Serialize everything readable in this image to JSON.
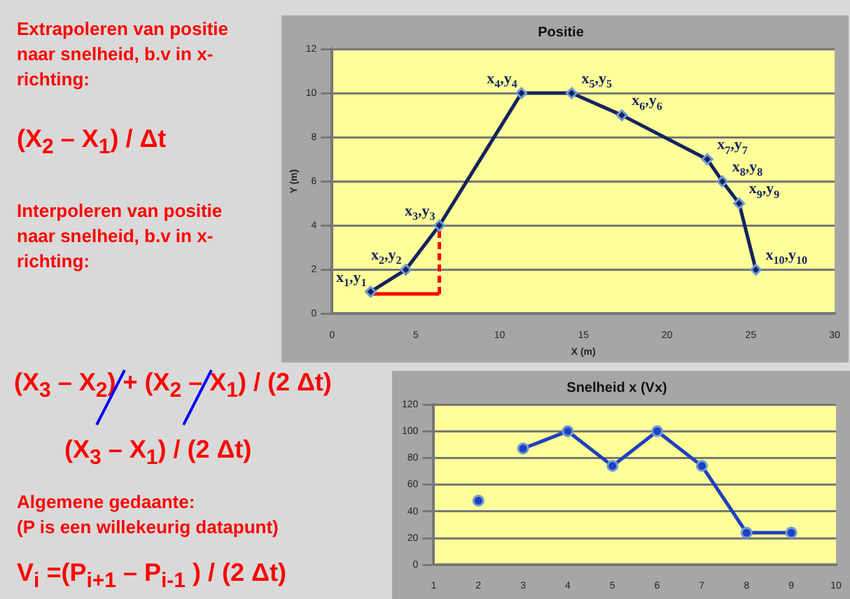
{
  "chart_data": [
    {
      "type": "other",
      "annotations": [
        "Extrapoleren van positie naar snelheid, b.v in x-richting:",
        "(X$_{2}$ – X$_{1}$) / Δt",
        "Interpoleren van positie naar snelheid, b.v in x-richting:",
        "(X$_{3}$ – X$_{2}$) + (X$_{2}$ – X$_{1}$) / (2 Δt)",
        "(X$_{3}$ – X$_{1}$) / (2 Δt)",
        "Algemene gedaante:",
        "(P is een willekeurig datapunt)",
        "V$_{i}$ =(P$_{i+1}$ – P$_{i-1}$ ) / (2 Δt)"
      ]
    },
    {
      "type": "line",
      "title": "Positie",
      "xlabel": "X (m)",
      "ylabel": "Y (m)",
      "xlim": [
        0,
        30
      ],
      "xticks": [
        0,
        5,
        10,
        15,
        20,
        25,
        30
      ],
      "ylim": [
        0,
        12
      ],
      "yticks": [
        0,
        2,
        4,
        6,
        8,
        10,
        12
      ],
      "grid": "y",
      "legend": false,
      "marker": "diamond",
      "series": [
        {
          "color": "#14235f",
          "x": [
            2.3,
            4.4,
            6.4,
            11.3,
            14.3,
            17.3,
            22.4,
            23.3,
            24.3,
            25.3
          ],
          "values": [
            1,
            2,
            4,
            10,
            10,
            9,
            7,
            6,
            5,
            2
          ]
        },
        {
          "color": "#ff0000",
          "marker": "none",
          "line_style": "solid",
          "x": [
            2.3,
            6.4
          ],
          "values": [
            0.9,
            0.9
          ]
        },
        {
          "color": "#ff0000",
          "marker": "none",
          "line_style": "dashed",
          "x": [
            6.4,
            6.4
          ],
          "values": [
            0.9,
            4
          ]
        }
      ],
      "annotations": [
        {
          "text": "x$_{1}$,y$_{1}$",
          "x": 2.3,
          "y": 1
        },
        {
          "text": "x$_{2}$,y$_{2}$",
          "x": 4.4,
          "y": 2
        },
        {
          "text": "x$_{3}$,y$_{3}$",
          "x": 6.4,
          "y": 4
        },
        {
          "text": "x$_{4}$,y$_{4}$",
          "x": 11.3,
          "y": 10
        },
        {
          "text": "x$_{5}$,y$_{5}$",
          "x": 14.3,
          "y": 10
        },
        {
          "text": "x$_{6}$,y$_{6}$",
          "x": 17.3,
          "y": 9
        },
        {
          "text": "x$_{7}$,y$_{7}$",
          "x": 22.4,
          "y": 7
        },
        {
          "text": "x$_{8}$,y$_{8}$",
          "x": 23.3,
          "y": 6
        },
        {
          "text": "x$_{9}$,y$_{9}$",
          "x": 24.3,
          "y": 5
        },
        {
          "text": "x$_{10}$,y$_{10}$",
          "x": 25.3,
          "y": 2
        }
      ]
    },
    {
      "type": "line",
      "title": "Snelheid x (Vx)",
      "xlim": [
        1,
        10
      ],
      "xticks": [
        1,
        2,
        3,
        4,
        5,
        6,
        7,
        8,
        9,
        10
      ],
      "ylim": [
        0,
        120
      ],
      "yticks": [
        0,
        20,
        40,
        60,
        80,
        100,
        120
      ],
      "grid": "y",
      "legend": false,
      "marker": "circle",
      "series": [
        {
          "type": "scatter",
          "color": "#1f3fbf",
          "x": [
            2
          ],
          "values": [
            48
          ]
        },
        {
          "color": "#1f3fbf",
          "x": [
            3,
            4,
            5,
            6,
            7,
            8,
            9
          ],
          "values": [
            87,
            100,
            74,
            100,
            74,
            24,
            24
          ]
        }
      ]
    }
  ]
}
